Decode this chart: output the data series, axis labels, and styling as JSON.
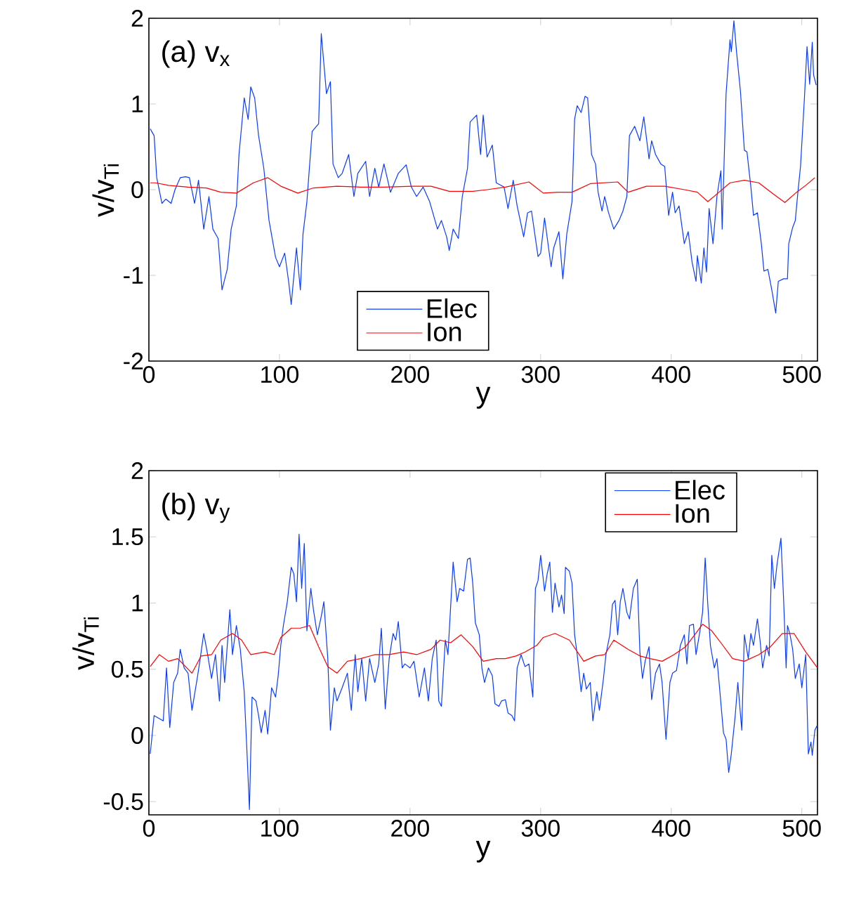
{
  "chart_data": [
    {
      "type": "line",
      "xlabel": "y",
      "ylabel": "v/v$_{Ti}$",
      "annotations": [
        "(a)  v$_{x}$"
      ],
      "xlim": [
        0,
        512
      ],
      "ylim": [
        -2,
        2
      ],
      "xticks": [
        0,
        100,
        200,
        300,
        400,
        500
      ],
      "yticks": [
        -2,
        -1,
        0,
        1,
        2
      ],
      "legend": "bottom",
      "grid": false,
      "series": [
        {
          "name": "Elec",
          "color": "#0a3cff",
          "x": [
            1,
            4,
            6,
            10,
            13,
            17,
            20,
            24,
            28,
            31,
            35,
            38,
            42,
            46,
            49,
            53,
            56,
            60,
            63,
            67,
            69,
            73,
            76,
            78,
            81,
            84,
            88,
            92,
            97,
            100,
            104,
            107,
            109,
            113,
            116,
            118,
            121,
            125,
            130,
            132,
            136,
            139,
            141,
            145,
            148,
            153,
            157,
            160,
            166,
            169,
            173,
            176,
            180,
            185,
            191,
            197,
            201,
            205,
            210,
            215,
            221,
            224,
            228,
            230,
            233,
            237,
            240,
            244,
            246,
            251,
            254,
            256,
            259,
            263,
            266,
            272,
            275,
            279,
            282,
            287,
            290,
            293,
            298,
            300,
            303,
            308,
            310,
            314,
            317,
            320,
            324,
            326,
            328,
            331,
            334,
            336,
            339,
            342,
            344,
            347,
            349,
            352,
            356,
            360,
            363,
            366,
            368,
            372,
            376,
            379,
            383,
            385,
            388,
            392,
            395,
            398,
            401,
            403,
            406,
            410,
            413,
            416,
            419,
            420,
            423,
            425,
            427,
            429,
            432,
            435,
            438,
            439,
            442,
            445,
            446,
            448,
            450,
            453,
            456,
            458,
            461,
            463,
            466,
            469,
            471,
            474,
            477,
            480,
            482,
            486,
            489,
            490,
            493,
            495,
            497,
            499,
            502,
            504,
            506,
            508,
            509,
            511
          ],
          "values": [
            0.71,
            0.63,
            0.14,
            -0.16,
            -0.11,
            -0.16,
            0,
            0.14,
            0.15,
            0.14,
            -0.16,
            0.11,
            -0.46,
            -0.08,
            -0.46,
            -0.57,
            -1.17,
            -0.93,
            -0.46,
            -0.19,
            0.41,
            1.07,
            0.82,
            1.2,
            1.07,
            0.63,
            0.25,
            -0.36,
            -0.79,
            -0.9,
            -0.74,
            -1.07,
            -1.34,
            -0.68,
            -1.17,
            -0.52,
            -0.14,
            0.68,
            0.77,
            1.82,
            1.12,
            1.26,
            0.3,
            0.14,
            0.19,
            0.41,
            -0.08,
            0.19,
            0.33,
            -0.08,
            0.25,
            0.03,
            0.3,
            -0.03,
            0.19,
            0.29,
            0.03,
            -0.08,
            0.03,
            -0.14,
            -0.46,
            -0.36,
            -0.55,
            -0.71,
            -0.46,
            -0.57,
            -0.08,
            0.25,
            0.79,
            0.87,
            0.41,
            0.87,
            0.38,
            0.52,
            0.08,
            0.03,
            -0.22,
            0.11,
            -0.19,
            -0.55,
            -0.27,
            -0.25,
            -0.78,
            -0.74,
            -0.33,
            -0.9,
            -0.68,
            -0.49,
            -1.04,
            -0.52,
            -0.14,
            0.82,
            0.98,
            0.9,
            1.09,
            1.07,
            0.41,
            0.3,
            -0.03,
            -0.25,
            -0.08,
            -0.27,
            -0.46,
            -0.36,
            -0.25,
            -0.08,
            0.63,
            0.74,
            0.57,
            0.85,
            0.36,
            0.57,
            0.41,
            0.3,
            0.27,
            -0.3,
            -0.03,
            -0.27,
            -0.19,
            -0.63,
            -0.49,
            -0.85,
            -1.07,
            -0.77,
            -1.09,
            -0.68,
            -0.96,
            -0.22,
            -0.63,
            -0.08,
            0.22,
            -0.46,
            1.12,
            1.75,
            1.61,
            1.97,
            1.61,
            1.15,
            0.46,
            0.44,
            0.03,
            -0.3,
            -0.27,
            -0.63,
            -0.95,
            -0.93,
            -1.17,
            -1.44,
            -1.07,
            -1.04,
            -1.04,
            -0.63,
            -0.44,
            -0.36,
            -0.03,
            0.27,
            1.07,
            1.67,
            1.23,
            1.72,
            1.34,
            1.22
          ]
        },
        {
          "name": "Ion",
          "color": "#ff0000",
          "x": [
            1,
            5,
            15,
            30,
            44,
            55,
            67,
            80,
            91,
            101,
            114,
            126,
            144,
            162,
            180,
            202,
            216,
            230,
            248,
            259,
            273,
            291,
            302,
            313,
            324,
            338,
            359,
            367,
            381,
            395,
            410,
            420,
            428,
            435,
            445,
            456,
            467,
            478,
            487,
            496,
            503,
            510
          ],
          "values": [
            0.08,
            0.08,
            0.05,
            0.03,
            0.02,
            -0.03,
            -0.04,
            0.08,
            0.14,
            0.04,
            -0.04,
            0.02,
            0.04,
            0.03,
            0.03,
            0.04,
            0.04,
            -0.02,
            -0.02,
            0,
            0.03,
            0.09,
            -0.04,
            -0.03,
            -0.03,
            0.07,
            0.09,
            -0.03,
            0.04,
            0.04,
            0,
            -0.03,
            -0.14,
            -0.05,
            0.08,
            0.11,
            0.08,
            -0.05,
            -0.15,
            -0.03,
            0.05,
            0.14
          ]
        }
      ]
    },
    {
      "type": "line",
      "xlabel": "y",
      "ylabel": "v/v$_{Ti}$",
      "annotations": [
        "(b)  v$_{y}$"
      ],
      "xlim": [
        0,
        512
      ],
      "ylim": [
        -0.6,
        2
      ],
      "xticks": [
        0,
        100,
        200,
        300,
        400,
        500
      ],
      "yticks": [
        -0.5,
        0,
        0.5,
        1,
        1.5,
        2
      ],
      "legend": "top right",
      "grid": false,
      "series": [
        {
          "name": "Elec",
          "color": "#0a3cff",
          "x": [
            1,
            4,
            7.5,
            11,
            13.5,
            16,
            19,
            22,
            24,
            27,
            30,
            33,
            37,
            39,
            42,
            45,
            48,
            51,
            54,
            56,
            58,
            62,
            64,
            67,
            70,
            73,
            75,
            77,
            79,
            82,
            84,
            86,
            89,
            91,
            94,
            97,
            99,
            101,
            103,
            106,
            109,
            111,
            113,
            115,
            117,
            119,
            121,
            124,
            126,
            129,
            132,
            134,
            137,
            139,
            142,
            144,
            148,
            152,
            155,
            158,
            160,
            163,
            166,
            169,
            173,
            176,
            178,
            181,
            184,
            187,
            189,
            191,
            194,
            196,
            200,
            203,
            207,
            211,
            214,
            217,
            220,
            222,
            224,
            227,
            229,
            233,
            236,
            238,
            241,
            244,
            246,
            248,
            250,
            253,
            255,
            257,
            260,
            263,
            265,
            268,
            270,
            273,
            275,
            278,
            280,
            282,
            285,
            288,
            291,
            294,
            296,
            298,
            300,
            303,
            305,
            307,
            309,
            311,
            314,
            316,
            318,
            319,
            322,
            324,
            326,
            328,
            331,
            333,
            335,
            338,
            340,
            343,
            345,
            348,
            350,
            353,
            355,
            357,
            359,
            361,
            363,
            366,
            368,
            371,
            374,
            376,
            378,
            380,
            383,
            385,
            388,
            391,
            393,
            396,
            399,
            401,
            404,
            407,
            410,
            412,
            414,
            417,
            419,
            422,
            424,
            426,
            428,
            430,
            433,
            435,
            437,
            440,
            442,
            444,
            446,
            449,
            451,
            454,
            456,
            459,
            461,
            463,
            466,
            468,
            470,
            473,
            475,
            477,
            479,
            481,
            484,
            486,
            488,
            489,
            491,
            493,
            495,
            498,
            500,
            503,
            505,
            507,
            508,
            510,
            512
          ],
          "values": [
            -0.14,
            0.15,
            0.13,
            0.11,
            0.51,
            0.06,
            0.4,
            0.47,
            0.65,
            0.51,
            0.47,
            0.19,
            0.43,
            0.56,
            0.77,
            0.61,
            0.43,
            0.61,
            0.26,
            0.68,
            0.4,
            0.95,
            0.61,
            0.83,
            0.65,
            0.33,
            -0.1,
            -0.56,
            0.29,
            0.26,
            0.15,
            0.02,
            0.19,
            0.01,
            0.36,
            0.29,
            0.45,
            0.68,
            0.83,
            1.01,
            1.27,
            1.22,
            1.01,
            1.52,
            1.11,
            1.45,
            0.79,
            1.11,
            0.95,
            0.76,
            0.9,
            1.01,
            0.58,
            0.04,
            0.36,
            0.26,
            0.36,
            0.47,
            0.19,
            0.61,
            0.33,
            0.58,
            0.26,
            0.58,
            0.4,
            0.54,
            0.81,
            0.2,
            0.58,
            0.77,
            0.72,
            0.86,
            0.51,
            0.54,
            0.51,
            0.56,
            0.29,
            0.51,
            0.26,
            0.58,
            0.72,
            0.26,
            0.22,
            0.72,
            0.61,
            1.31,
            1.01,
            1.11,
            1.09,
            1.33,
            1.34,
            1.15,
            0.85,
            0.76,
            0.51,
            0.4,
            0.51,
            0.45,
            0.24,
            0.22,
            0.26,
            0.27,
            0.17,
            0.15,
            0.11,
            0.51,
            0.61,
            0.52,
            0.54,
            0.29,
            1.11,
            1.17,
            1.36,
            1.09,
            1.22,
            1.31,
            0.93,
            1.15,
            0.97,
            1.06,
            0.92,
            1.27,
            1.24,
            1.15,
            0.76,
            0.61,
            0.33,
            0.47,
            0.35,
            0.4,
            0.11,
            0.33,
            0.19,
            0.42,
            0.61,
            0.76,
            0.99,
            1.02,
            0.76,
            1.01,
            1.11,
            0.93,
            0.88,
            1.11,
            1.18,
            0.63,
            0.43,
            0.56,
            0.67,
            0.27,
            0.47,
            0.54,
            0.4,
            -0.03,
            0.4,
            0.47,
            0.49,
            0.68,
            0.76,
            0.54,
            0.83,
            0.84,
            0.61,
            0.79,
            0.93,
            1.34,
            0.99,
            0.68,
            0.51,
            0.58,
            0.36,
            0.02,
            -0.03,
            -0.28,
            -0.14,
            0.15,
            0.4,
            0.04,
            0.76,
            0.58,
            0.77,
            0.68,
            0.88,
            0.72,
            0.51,
            0.68,
            0.6,
            1.36,
            1.11,
            1.29,
            1.49,
            1.04,
            0.51,
            0.83,
            0.76,
            0.65,
            0.43,
            0.54,
            0.36,
            0.61,
            -0.14,
            -0.05,
            -0.15,
            0.04,
            0.08
          ]
        },
        {
          "name": "Ion",
          "color": "#ff0000",
          "x": [
            1,
            8,
            15,
            22,
            33,
            40,
            48,
            55,
            64,
            71,
            78,
            89,
            96,
            101,
            109,
            116,
            123,
            130,
            137,
            144,
            152,
            162,
            173,
            184,
            195,
            205,
            216,
            223,
            231,
            239,
            248,
            256,
            266,
            273,
            281,
            288,
            297,
            302,
            311,
            322,
            333,
            342,
            349,
            356,
            367,
            376,
            384,
            393,
            402,
            411,
            418,
            424,
            431,
            438,
            447,
            456,
            467,
            476,
            485,
            494,
            503,
            512
          ],
          "values": [
            0.52,
            0.61,
            0.56,
            0.58,
            0.47,
            0.6,
            0.61,
            0.72,
            0.77,
            0.72,
            0.61,
            0.63,
            0.61,
            0.74,
            0.81,
            0.81,
            0.83,
            0.67,
            0.52,
            0.47,
            0.56,
            0.58,
            0.61,
            0.61,
            0.63,
            0.61,
            0.65,
            0.72,
            0.7,
            0.76,
            0.67,
            0.56,
            0.58,
            0.58,
            0.6,
            0.63,
            0.68,
            0.74,
            0.77,
            0.72,
            0.56,
            0.6,
            0.61,
            0.72,
            0.65,
            0.6,
            0.58,
            0.56,
            0.61,
            0.67,
            0.76,
            0.84,
            0.79,
            0.7,
            0.58,
            0.56,
            0.61,
            0.67,
            0.77,
            0.77,
            0.63,
            0.51
          ]
        }
      ]
    }
  ]
}
